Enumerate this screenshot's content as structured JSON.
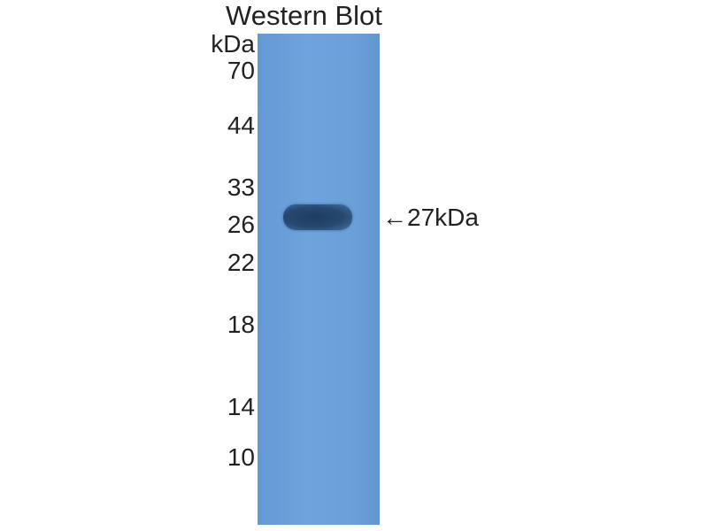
{
  "title": "Western Blot",
  "unit_label": "kDa",
  "markers": [
    "70",
    "44",
    "33",
    "26",
    "22",
    "18",
    "14",
    "10"
  ],
  "band_annotation": "←27kDa",
  "colors": {
    "lane": "#6b9fd8",
    "band": "#27496f"
  }
}
